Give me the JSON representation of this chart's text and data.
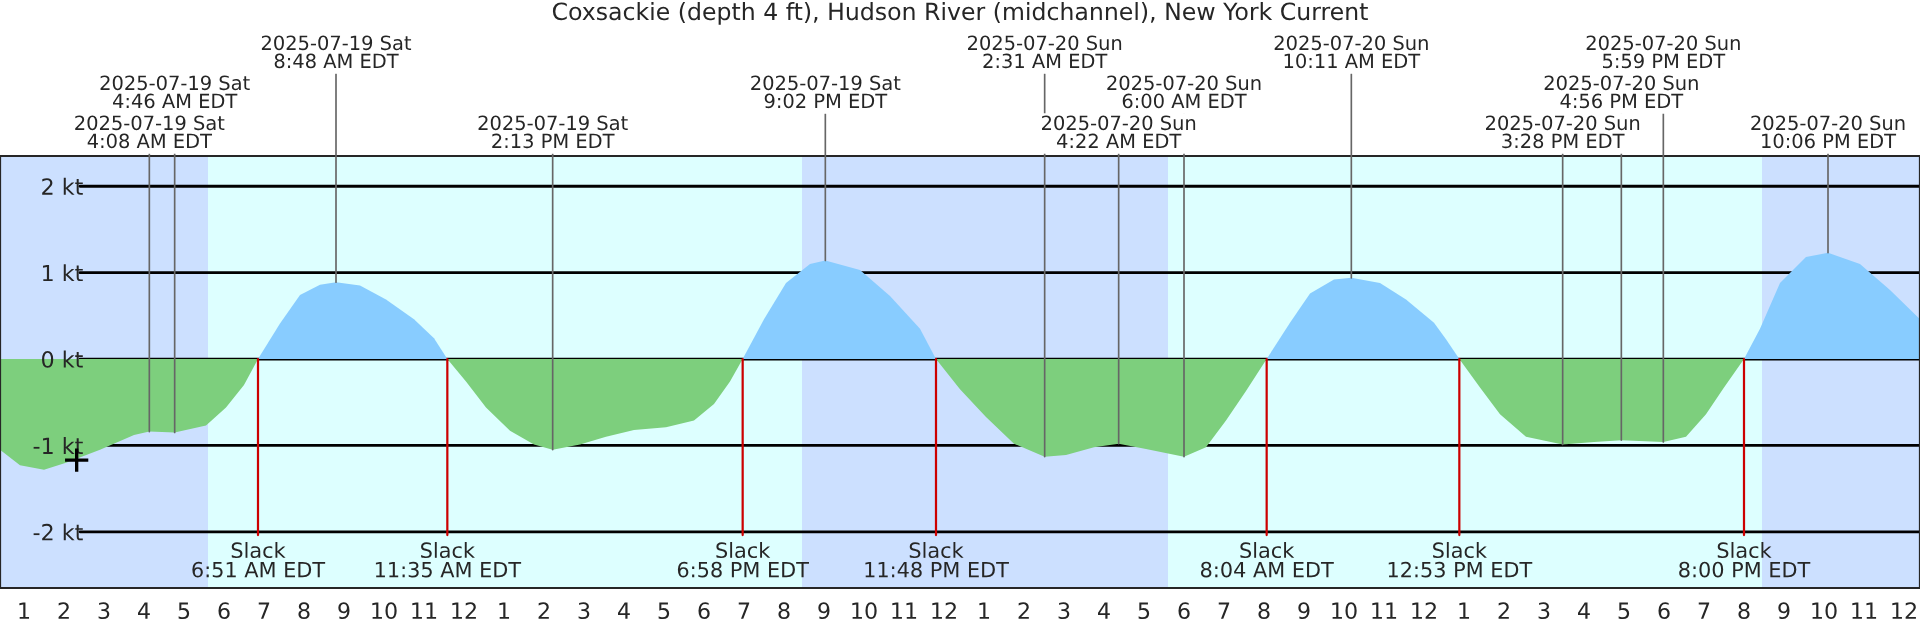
{
  "chart_data": {
    "type": "area",
    "title": "Coxsackie (depth 4 ft), Hudson River (midchannel), New York Current",
    "series": [
      {
        "color": "#7dcf7d",
        "x": [
          "2025-07-19T00:24",
          "2025-07-19T00:54",
          "2025-07-19T01:30",
          "2025-07-19T02:03",
          "2025-07-19T02:54",
          "2025-07-19T03:45",
          "2025-07-19T04:08",
          "2025-07-19T04:46",
          "2025-07-19T05:33",
          "2025-07-19T06:03",
          "2025-07-19T06:30",
          "2025-07-19T06:51",
          "2025-07-19T09:00",
          "2025-07-19T11:35",
          "2025-07-19T12:03",
          "2025-07-19T12:33",
          "2025-07-19T13:09",
          "2025-07-19T13:45",
          "2025-07-19T14:13",
          "2025-07-19T14:54",
          "2025-07-19T15:33",
          "2025-07-19T16:15",
          "2025-07-19T17:03",
          "2025-07-19T17:45",
          "2025-07-19T18:15",
          "2025-07-19T18:39",
          "2025-07-19T18:58",
          "2025-07-19T21:00",
          "2025-07-19T23:48",
          "2025-07-20T00:24",
          "2025-07-20T01:03",
          "2025-07-20T01:45",
          "2025-07-20T02:31",
          "2025-07-20T03:03",
          "2025-07-20T03:45",
          "2025-07-20T04:22",
          "2025-07-20T05:03",
          "2025-07-20T06:00",
          "2025-07-20T06:33",
          "2025-07-20T07:03",
          "2025-07-20T07:33",
          "2025-07-20T08:04",
          "2025-07-20T10:00",
          "2025-07-20T12:53",
          "2025-07-20T13:24",
          "2025-07-20T13:54",
          "2025-07-20T14:33",
          "2025-07-20T15:28",
          "2025-07-20T16:15",
          "2025-07-20T16:56",
          "2025-07-20T17:59",
          "2025-07-20T18:33",
          "2025-07-20T19:03",
          "2025-07-20T19:30",
          "2025-07-20T20:00"
        ],
        "values": [
          -1.05,
          -1.23,
          -1.28,
          -1.2,
          -1.05,
          -0.88,
          -0.84,
          -0.85,
          -0.77,
          -0.56,
          -0.3,
          0,
          null,
          0,
          -0.26,
          -0.56,
          -0.83,
          -0.99,
          -1.05,
          -0.99,
          -0.9,
          -0.82,
          -0.79,
          -0.71,
          -0.52,
          -0.26,
          0,
          null,
          0,
          -0.35,
          -0.67,
          -0.98,
          -1.13,
          -1.11,
          -1.02,
          -0.98,
          -1.04,
          -1.13,
          -1.02,
          -0.71,
          -0.37,
          0,
          null,
          0,
          -0.33,
          -0.64,
          -0.9,
          -0.99,
          -0.96,
          -0.94,
          -0.96,
          -0.9,
          -0.64,
          -0.33,
          0
        ]
      },
      {
        "color": "#88ccff",
        "x": [
          "2025-07-19T06:51",
          "2025-07-19T07:24",
          "2025-07-19T07:54",
          "2025-07-19T08:24",
          "2025-07-19T08:48",
          "2025-07-19T09:24",
          "2025-07-19T10:03",
          "2025-07-19T10:45",
          "2025-07-19T11:15",
          "2025-07-19T11:35",
          "2025-07-19T15:00",
          "2025-07-19T18:58",
          "2025-07-19T19:30",
          "2025-07-19T20:03",
          "2025-07-19T20:39",
          "2025-07-19T21:02",
          "2025-07-19T21:54",
          "2025-07-19T22:39",
          "2025-07-19T23:24",
          "2025-07-19T23:48",
          "2025-07-20T04:00",
          "2025-07-20T08:04",
          "2025-07-20T08:39",
          "2025-07-20T09:09",
          "2025-07-20T09:45",
          "2025-07-20T10:11",
          "2025-07-20T10:54",
          "2025-07-20T11:33",
          "2025-07-20T12:15",
          "2025-07-20T12:33",
          "2025-07-20T12:53",
          "2025-07-20T16:00",
          "2025-07-20T20:00",
          "2025-07-20T20:24",
          "2025-07-20T20:54",
          "2025-07-20T21:33",
          "2025-07-20T22:06",
          "2025-07-20T22:54",
          "2025-07-20T23:39",
          "2025-07-21T00:24"
        ],
        "values": [
          0,
          0.41,
          0.74,
          0.86,
          0.89,
          0.85,
          0.69,
          0.46,
          0.24,
          0,
          null,
          0,
          0.46,
          0.88,
          1.1,
          1.14,
          1.03,
          0.73,
          0.35,
          0,
          null,
          0,
          0.42,
          0.76,
          0.92,
          0.94,
          0.88,
          0.69,
          0.42,
          0.23,
          0,
          null,
          0,
          0.35,
          0.88,
          1.18,
          1.23,
          1.1,
          0.8,
          0.46
        ]
      },
      {
        "type": "scatter",
        "color": "#000000",
        "marker": "cross",
        "x": [
          "2025-07-19T02:19"
        ],
        "values": [
          -1.17
        ]
      }
    ],
    "xlim": [
      "2025-07-19T00:24",
      "2025-07-21T00:24"
    ],
    "xticks": [
      {
        "value": "2025-07-19T01:00",
        "label": "1"
      },
      {
        "value": "2025-07-19T02:00",
        "label": "2"
      },
      {
        "value": "2025-07-19T03:00",
        "label": "3"
      },
      {
        "value": "2025-07-19T04:00",
        "label": "4"
      },
      {
        "value": "2025-07-19T05:00",
        "label": "5"
      },
      {
        "value": "2025-07-19T06:00",
        "label": "6"
      },
      {
        "value": "2025-07-19T07:00",
        "label": "7"
      },
      {
        "value": "2025-07-19T08:00",
        "label": "8"
      },
      {
        "value": "2025-07-19T09:00",
        "label": "9"
      },
      {
        "value": "2025-07-19T10:00",
        "label": "10"
      },
      {
        "value": "2025-07-19T11:00",
        "label": "11"
      },
      {
        "value": "2025-07-19T12:00",
        "label": "12"
      },
      {
        "value": "2025-07-19T13:00",
        "label": "1"
      },
      {
        "value": "2025-07-19T14:00",
        "label": "2"
      },
      {
        "value": "2025-07-19T15:00",
        "label": "3"
      },
      {
        "value": "2025-07-19T16:00",
        "label": "4"
      },
      {
        "value": "2025-07-19T17:00",
        "label": "5"
      },
      {
        "value": "2025-07-19T18:00",
        "label": "6"
      },
      {
        "value": "2025-07-19T19:00",
        "label": "7"
      },
      {
        "value": "2025-07-19T20:00",
        "label": "8"
      },
      {
        "value": "2025-07-19T21:00",
        "label": "9"
      },
      {
        "value": "2025-07-19T22:00",
        "label": "10"
      },
      {
        "value": "2025-07-19T23:00",
        "label": "11"
      },
      {
        "value": "2025-07-20T00:00",
        "label": "12"
      },
      {
        "value": "2025-07-20T01:00",
        "label": "1"
      },
      {
        "value": "2025-07-20T02:00",
        "label": "2"
      },
      {
        "value": "2025-07-20T03:00",
        "label": "3"
      },
      {
        "value": "2025-07-20T04:00",
        "label": "4"
      },
      {
        "value": "2025-07-20T05:00",
        "label": "5"
      },
      {
        "value": "2025-07-20T06:00",
        "label": "6"
      },
      {
        "value": "2025-07-20T07:00",
        "label": "7"
      },
      {
        "value": "2025-07-20T08:00",
        "label": "8"
      },
      {
        "value": "2025-07-20T09:00",
        "label": "9"
      },
      {
        "value": "2025-07-20T10:00",
        "label": "10"
      },
      {
        "value": "2025-07-20T11:00",
        "label": "11"
      },
      {
        "value": "2025-07-20T12:00",
        "label": "12"
      },
      {
        "value": "2025-07-20T13:00",
        "label": "1"
      },
      {
        "value": "2025-07-20T14:00",
        "label": "2"
      },
      {
        "value": "2025-07-20T15:00",
        "label": "3"
      },
      {
        "value": "2025-07-20T16:00",
        "label": "4"
      },
      {
        "value": "2025-07-20T17:00",
        "label": "5"
      },
      {
        "value": "2025-07-20T18:00",
        "label": "6"
      },
      {
        "value": "2025-07-20T19:00",
        "label": "7"
      },
      {
        "value": "2025-07-20T20:00",
        "label": "8"
      },
      {
        "value": "2025-07-20T21:00",
        "label": "9"
      },
      {
        "value": "2025-07-20T22:00",
        "label": "10"
      },
      {
        "value": "2025-07-20T23:00",
        "label": "11"
      },
      {
        "value": "2025-07-21T00:00",
        "label": "12"
      }
    ],
    "ylim": [
      -2.65,
      2.35
    ],
    "yticks": [
      {
        "value": -2,
        "label": "-2 kt"
      },
      {
        "value": -1,
        "label": "-1 kt"
      },
      {
        "value": 0,
        "label": "0 kt"
      },
      {
        "value": 1,
        "label": "1 kt"
      },
      {
        "value": 2,
        "label": "2 kt"
      }
    ],
    "grid": "y",
    "bands": [
      {
        "axis": "x",
        "from": "2025-07-19T00:24",
        "to": "2025-07-19T05:36",
        "color": "#cce0ff"
      },
      {
        "axis": "x",
        "from": "2025-07-19T05:36",
        "to": "2025-07-19T20:27",
        "color": "#ddffff"
      },
      {
        "axis": "x",
        "from": "2025-07-19T20:27",
        "to": "2025-07-20T05:36",
        "color": "#cce0ff"
      },
      {
        "axis": "x",
        "from": "2025-07-20T05:36",
        "to": "2025-07-20T20:27",
        "color": "#ddffff"
      },
      {
        "axis": "x",
        "from": "2025-07-20T20:27",
        "to": "2025-07-21T00:24",
        "color": "#cce0ff"
      }
    ],
    "annotations": [
      {
        "text": "2025-07-19 Sat\n4:08 AM EDT",
        "x": "2025-07-19T04:08",
        "y": -0.84
      },
      {
        "text": "2025-07-19 Sat\n4:46 AM EDT",
        "x": "2025-07-19T04:46",
        "y": -0.85
      },
      {
        "text": "2025-07-19 Sat\n8:48 AM EDT",
        "x": "2025-07-19T08:48",
        "y": 0.89
      },
      {
        "text": "2025-07-19 Sat\n2:13 PM EDT",
        "x": "2025-07-19T14:13",
        "y": -1.05
      },
      {
        "text": "2025-07-19 Sat\n9:02 PM EDT",
        "x": "2025-07-19T21:02",
        "y": 1.14
      },
      {
        "text": "2025-07-20 Sun\n2:31 AM EDT",
        "x": "2025-07-20T02:31",
        "y": -1.13
      },
      {
        "text": "2025-07-20 Sun\n4:22 AM EDT",
        "x": "2025-07-20T04:22",
        "y": -0.98
      },
      {
        "text": "2025-07-20 Sun\n6:00 AM EDT",
        "x": "2025-07-20T06:00",
        "y": -1.13
      },
      {
        "text": "2025-07-20 Sun\n10:11 AM EDT",
        "x": "2025-07-20T10:11",
        "y": 0.94
      },
      {
        "text": "2025-07-20 Sun\n3:28 PM EDT",
        "x": "2025-07-20T15:28",
        "y": -0.99
      },
      {
        "text": "2025-07-20 Sun\n4:56 PM EDT",
        "x": "2025-07-20T16:56",
        "y": -0.94
      },
      {
        "text": "2025-07-20 Sun\n5:59 PM EDT",
        "x": "2025-07-20T17:59",
        "y": -0.96
      },
      {
        "text": "2025-07-20 Sun\n10:06 PM EDT",
        "x": "2025-07-20T22:06",
        "y": 1.23
      },
      {
        "text": "Slack\n6:51 AM EDT",
        "x": "2025-07-19T06:51",
        "y": 0
      },
      {
        "text": "Slack\n11:35 AM EDT",
        "x": "2025-07-19T11:35",
        "y": 0
      },
      {
        "text": "Slack\n6:58 PM EDT",
        "x": "2025-07-19T18:58",
        "y": 0
      },
      {
        "text": "Slack\n11:48 PM EDT",
        "x": "2025-07-19T23:48",
        "y": 0
      },
      {
        "text": "Slack\n8:04 AM EDT",
        "x": "2025-07-20T08:04",
        "y": 0
      },
      {
        "text": "Slack\n12:53 PM EDT",
        "x": "2025-07-20T12:53",
        "y": 0
      },
      {
        "text": "Slack\n8:00 PM EDT",
        "x": "2025-07-20T20:00",
        "y": 0
      }
    ],
    "legend": false
  }
}
